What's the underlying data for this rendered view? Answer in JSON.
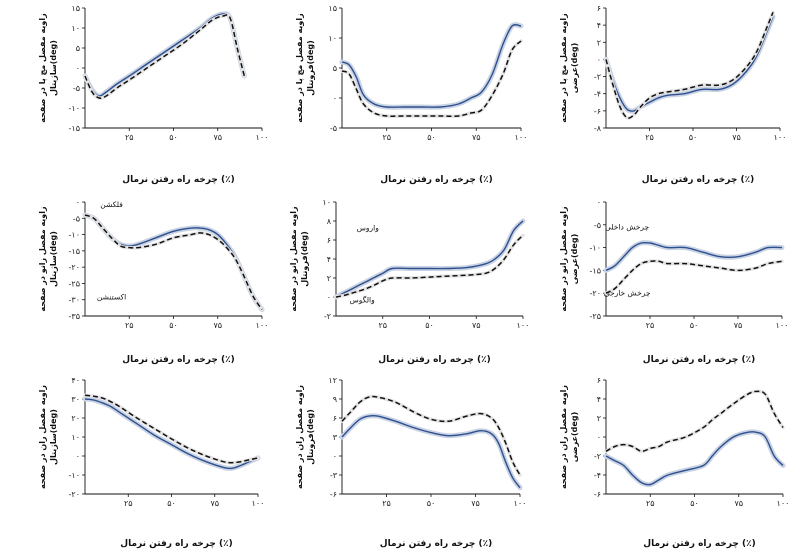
{
  "colors": {
    "solid": "#2e4f8f",
    "band": "#c9d3e3",
    "dashed": "#111111"
  },
  "chart_data": [
    {
      "type": "line",
      "xlabel": "چرخه راه رفتن نرمال (٪)",
      "ylabel": [
        "زاویه مفصل مچ پا در صفحه",
        "ساژیتال(deg)"
      ],
      "xlim": [
        0,
        100
      ],
      "ylim": [
        -15,
        15
      ],
      "xticks": [
        25,
        50,
        75,
        100
      ],
      "xtick_labels": [
        "۲۵",
        "۵۰",
        "۷۵",
        "۱۰۰"
      ],
      "yticks": [
        -15,
        -10,
        -5,
        0,
        5,
        10,
        15
      ],
      "ytick_labels": [
        "-۱۵",
        "-۱۰",
        "-۵",
        "۰",
        "۵",
        "۱۰",
        "۱۵"
      ],
      "annotations": [],
      "series": [
        {
          "style": "solid",
          "x": [
            0,
            4,
            8,
            12,
            18,
            25,
            35,
            45,
            55,
            65,
            72,
            78,
            82,
            86,
            90
          ],
          "y": [
            -2,
            -5.5,
            -7,
            -6,
            -4,
            -2,
            1,
            4,
            7,
            10,
            12.5,
            13.5,
            12.5,
            5,
            -2
          ]
        },
        {
          "style": "dashed",
          "x": [
            0,
            4,
            8,
            12,
            18,
            25,
            35,
            45,
            55,
            65,
            72,
            78,
            82,
            86,
            90
          ],
          "y": [
            -2,
            -6,
            -7.5,
            -7,
            -5,
            -3,
            0,
            3,
            6,
            9.5,
            12,
            13,
            12.5,
            5,
            -2
          ]
        }
      ]
    },
    {
      "type": "line",
      "xlabel": "چرخه راه رفتن نرمال (٪)",
      "ylabel": [
        "زاویه مفصل مچ پا در صفحه",
        "فرونتال(deg)"
      ],
      "xlim": [
        0,
        100
      ],
      "ylim": [
        -5,
        15
      ],
      "xticks": [
        25,
        50,
        75,
        100
      ],
      "xtick_labels": [
        "۲۵",
        "۵۰",
        "۷۵",
        "۱۰۰"
      ],
      "yticks": [
        -5,
        0,
        5,
        10,
        15
      ],
      "ytick_labels": [
        "-۵",
        "۰",
        "۵",
        "۱۰",
        "۱۵"
      ],
      "annotations": [],
      "series": [
        {
          "style": "solid",
          "x": [
            0,
            4,
            8,
            12,
            18,
            25,
            35,
            45,
            55,
            65,
            72,
            78,
            84,
            90,
            95,
            100
          ],
          "y": [
            6,
            5.5,
            3.5,
            0.5,
            -1,
            -1.5,
            -1.5,
            -1.5,
            -1.5,
            -1,
            0,
            1,
            4,
            9,
            12,
            12
          ]
        },
        {
          "style": "dashed",
          "x": [
            0,
            4,
            8,
            12,
            18,
            25,
            35,
            45,
            55,
            65,
            72,
            78,
            84,
            90,
            95,
            100
          ],
          "y": [
            4.5,
            4,
            1.5,
            -1,
            -2.5,
            -3,
            -3,
            -3,
            -3,
            -3,
            -2.5,
            -2,
            0.5,
            4,
            8,
            9.5
          ]
        }
      ]
    },
    {
      "type": "line",
      "xlabel": "چرخه راه رفتن نرمال (٪)",
      "ylabel": [
        "زاویه مفصل مچ پا در صفحه",
        "عرضی(deg)"
      ],
      "xlim": [
        0,
        100
      ],
      "ylim": [
        -8,
        6
      ],
      "xticks": [
        25,
        50,
        75,
        100
      ],
      "xtick_labels": [
        "۲۵",
        "۵۰",
        "۷۵",
        "۱۰۰"
      ],
      "yticks": [
        -8,
        -6,
        -4,
        -2,
        0,
        2,
        4,
        6
      ],
      "ytick_labels": [
        "-۸",
        "-۶",
        "-۴",
        "-۲",
        "۰",
        "۲",
        "۴",
        "۶"
      ],
      "annotations": [],
      "series": [
        {
          "style": "solid",
          "x": [
            0,
            4,
            8,
            12,
            16,
            20,
            25,
            30,
            35,
            45,
            55,
            65,
            72,
            78,
            84,
            88,
            92,
            96
          ],
          "y": [
            0,
            -2.5,
            -4.5,
            -5.8,
            -6,
            -5.5,
            -5,
            -4.5,
            -4.2,
            -4,
            -3.5,
            -3.5,
            -3,
            -2,
            -0.5,
            1,
            3,
            5
          ]
        },
        {
          "style": "dashed",
          "x": [
            0,
            4,
            8,
            12,
            16,
            20,
            25,
            30,
            35,
            45,
            55,
            65,
            72,
            78,
            84,
            88,
            92,
            96
          ],
          "y": [
            0,
            -3,
            -5.5,
            -6.8,
            -6.5,
            -5.5,
            -4.5,
            -4,
            -3.8,
            -3.5,
            -3,
            -3,
            -2.5,
            -1.5,
            0,
            1.5,
            3.5,
            5.5
          ]
        }
      ]
    },
    {
      "type": "line",
      "xlabel": "چرخه راه رفتن نرمال (٪)",
      "ylabel": [
        "زاویه مفصل زانو در صفحه",
        "ساژیتال(deg)"
      ],
      "xlim": [
        0,
        100
      ],
      "ylim": [
        -35,
        0
      ],
      "xticks": [
        25,
        50,
        75,
        100
      ],
      "xtick_labels": [
        "۲۵",
        "۵۰",
        "۷۵",
        "۱۰۰"
      ],
      "yticks": [
        -35,
        -30,
        -25,
        -20,
        -15,
        -10,
        -5,
        0
      ],
      "ytick_labels": [
        "-۳۵",
        "-۳۰",
        "-۲۵",
        "-۲۰",
        "-۱۵",
        "-۱۰",
        "-۵",
        "۰"
      ],
      "annotations": [
        {
          "text": "فلکشن",
          "x": 15,
          "y": -1.5
        },
        {
          "text": "اکستنشن",
          "x": 15,
          "y": -30
        }
      ],
      "series": [
        {
          "style": "solid",
          "x": [
            0,
            5,
            10,
            15,
            20,
            25,
            30,
            40,
            50,
            60,
            65,
            70,
            75,
            80,
            85,
            90,
            95,
            100
          ],
          "y": [
            -4,
            -5,
            -8,
            -11,
            -13,
            -13.5,
            -13,
            -11,
            -9,
            -8,
            -8,
            -8.5,
            -10,
            -13,
            -17,
            -23,
            -29,
            -33
          ]
        },
        {
          "style": "dashed",
          "x": [
            0,
            5,
            10,
            15,
            20,
            25,
            30,
            40,
            50,
            60,
            65,
            70,
            75,
            80,
            85,
            90,
            95,
            100
          ],
          "y": [
            -4,
            -5,
            -8,
            -11,
            -13.5,
            -14,
            -14,
            -13,
            -11,
            -10,
            -9.5,
            -10,
            -11.5,
            -14,
            -17.5,
            -23,
            -29,
            -33
          ]
        }
      ]
    },
    {
      "type": "line",
      "xlabel": "چرخه راه رفتن نرمال (٪)",
      "ylabel": [
        "زاویه مفصل زانو در صفحه",
        "فرونتال(deg)"
      ],
      "xlim": [
        0,
        100
      ],
      "ylim": [
        -2,
        10
      ],
      "xticks": [
        25,
        50,
        75,
        100
      ],
      "xtick_labels": [
        "۲۵",
        "۵۰",
        "۷۵",
        "۱۰۰"
      ],
      "yticks": [
        -2,
        0,
        2,
        4,
        6,
        8,
        10
      ],
      "ytick_labels": [
        "-۲",
        "۰",
        "۲",
        "۴",
        "۶",
        "۸",
        "۱۰"
      ],
      "annotations": [
        {
          "text": "واروس",
          "x": 17,
          "y": 7
        },
        {
          "text": "والگوس",
          "x": 14,
          "y": -0.6
        }
      ],
      "series": [
        {
          "style": "solid",
          "x": [
            0,
            5,
            10,
            15,
            20,
            25,
            30,
            40,
            50,
            60,
            70,
            80,
            85,
            90,
            95,
            100
          ],
          "y": [
            0,
            0.5,
            1,
            1.5,
            2,
            2.5,
            3,
            3,
            3,
            3,
            3.1,
            3.5,
            4,
            5,
            7,
            8
          ]
        },
        {
          "style": "dashed",
          "x": [
            0,
            5,
            10,
            15,
            20,
            25,
            30,
            40,
            50,
            60,
            70,
            80,
            85,
            90,
            95,
            100
          ],
          "y": [
            0,
            0.2,
            0.5,
            0.8,
            1.2,
            1.7,
            2,
            2,
            2.1,
            2.2,
            2.3,
            2.5,
            3,
            4,
            5.5,
            6.5
          ]
        }
      ]
    },
    {
      "type": "line",
      "xlabel": "چرخه راه رفتن نرمال (٪)",
      "ylabel": [
        "زاویه مفصل زانو در صفحه",
        "عرضی(deg)"
      ],
      "xlim": [
        0,
        100
      ],
      "ylim": [
        -25,
        0
      ],
      "xticks": [
        25,
        50,
        75,
        100
      ],
      "xtick_labels": [
        "۲۵",
        "۵۰",
        "۷۵",
        "۱۰۰"
      ],
      "yticks": [
        -25,
        -20,
        -15,
        -10,
        -5,
        0
      ],
      "ytick_labels": [
        "-۲۵",
        "-۲۰",
        "-۱۵",
        "-۱۰",
        "-۵",
        "۰"
      ],
      "annotations": [
        {
          "text": "چرخش داخلی",
          "x": 12,
          "y": -6
        },
        {
          "text": "چرخش خارجی",
          "x": 12,
          "y": -20.5
        }
      ],
      "series": [
        {
          "style": "solid",
          "x": [
            0,
            5,
            10,
            15,
            20,
            25,
            30,
            35,
            45,
            55,
            65,
            75,
            85,
            92,
            100
          ],
          "y": [
            -15,
            -14,
            -12,
            -10,
            -9,
            -9,
            -9.5,
            -10,
            -10,
            -11,
            -12,
            -12,
            -11,
            -10,
            -10
          ]
        },
        {
          "style": "dashed",
          "x": [
            0,
            5,
            10,
            15,
            20,
            25,
            30,
            35,
            45,
            55,
            65,
            75,
            85,
            92,
            100
          ],
          "y": [
            -20,
            -19,
            -17,
            -15,
            -13.5,
            -13,
            -13,
            -13.5,
            -13.5,
            -14,
            -14.5,
            -15,
            -14.5,
            -13.5,
            -13
          ]
        }
      ]
    },
    {
      "type": "line",
      "xlabel": "چرخه راه رفتن نرمال (٪)",
      "ylabel": [
        "زاویه مفصل ران در صفحه",
        "ساژیتال(deg)"
      ],
      "xlim": [
        0,
        100
      ],
      "ylim": [
        -20,
        40
      ],
      "xticks": [
        25,
        50,
        75,
        100
      ],
      "xtick_labels": [
        "۲۵",
        "۵۰",
        "۷۵",
        "۱۰۰"
      ],
      "yticks": [
        -20,
        -10,
        0,
        10,
        20,
        30,
        40
      ],
      "ytick_labels": [
        "-۲۰",
        "-۱۰",
        "۰",
        "۱۰",
        "۲۰",
        "۳۰",
        "۴۰"
      ],
      "annotations": [],
      "series": [
        {
          "style": "solid",
          "x": [
            0,
            5,
            10,
            15,
            20,
            30,
            40,
            50,
            60,
            70,
            80,
            85,
            90,
            95,
            100
          ],
          "y": [
            30,
            29.5,
            28,
            26,
            23,
            17,
            11,
            6,
            1,
            -3,
            -6,
            -6.5,
            -5,
            -3,
            -1
          ]
        },
        {
          "style": "dashed",
          "x": [
            0,
            5,
            10,
            15,
            20,
            30,
            40,
            50,
            60,
            70,
            80,
            85,
            90,
            95,
            100
          ],
          "y": [
            32,
            31.5,
            30.5,
            28.5,
            26,
            20,
            14.5,
            9,
            4,
            0,
            -3,
            -3.5,
            -3,
            -2,
            -1
          ]
        }
      ]
    },
    {
      "type": "line",
      "xlabel": "چرخه راه رفتن نرمال (٪)",
      "ylabel": [
        "زاویه مفصل ران در صفحه",
        "فرونتال(deg)"
      ],
      "xlim": [
        0,
        100
      ],
      "ylim": [
        -6,
        12
      ],
      "xticks": [
        25,
        50,
        75,
        100
      ],
      "xtick_labels": [
        "۲۵",
        "۵۰",
        "۷۵",
        "۱۰۰"
      ],
      "yticks": [
        -6,
        -3,
        0,
        3,
        6,
        9,
        12
      ],
      "ytick_labels": [
        "-۶",
        "-۳",
        "۰",
        "۳",
        "۶",
        "۹",
        "۱۲"
      ],
      "annotations": [],
      "series": [
        {
          "style": "solid",
          "x": [
            0,
            5,
            10,
            15,
            20,
            30,
            40,
            50,
            60,
            70,
            78,
            84,
            88,
            92,
            96,
            100
          ],
          "y": [
            3,
            4.5,
            5.8,
            6.3,
            6.3,
            5.5,
            4.5,
            3.7,
            3.2,
            3.5,
            4,
            3.5,
            2,
            -1,
            -3.5,
            -5
          ]
        },
        {
          "style": "dashed",
          "x": [
            0,
            5,
            10,
            15,
            20,
            30,
            40,
            50,
            60,
            70,
            78,
            84,
            88,
            92,
            96,
            100
          ],
          "y": [
            5.5,
            7,
            8.5,
            9.3,
            9.3,
            8.5,
            7,
            5.8,
            5.5,
            6.3,
            6.7,
            6,
            4.5,
            2,
            -1,
            -3
          ]
        }
      ]
    },
    {
      "type": "line",
      "xlabel": "چرخه راه رفتن نرمال (٪)",
      "ylabel": [
        "زاویه مفصل ران در صفحه",
        "عرضی(deg)"
      ],
      "xlim": [
        0,
        100
      ],
      "ylim": [
        -6,
        6
      ],
      "xticks": [
        25,
        50,
        75,
        100
      ],
      "xtick_labels": [
        "۲۵",
        "۵۰",
        "۷۵",
        "۱۰۰"
      ],
      "yticks": [
        -6,
        -4,
        -2,
        0,
        2,
        4,
        6
      ],
      "ytick_labels": [
        "-۶",
        "-۴",
        "-۲",
        "۰",
        "۲",
        "۴",
        "۶"
      ],
      "annotations": [],
      "series": [
        {
          "style": "solid",
          "x": [
            0,
            5,
            10,
            15,
            20,
            25,
            30,
            35,
            45,
            55,
            60,
            65,
            72,
            80,
            85,
            90,
            95,
            100
          ],
          "y": [
            -2,
            -2.5,
            -3,
            -4,
            -4.8,
            -5,
            -4.5,
            -4,
            -3.5,
            -3,
            -2,
            -1,
            0,
            0.5,
            0.5,
            0,
            -2,
            -3
          ]
        },
        {
          "style": "dashed",
          "x": [
            0,
            5,
            10,
            15,
            20,
            25,
            30,
            35,
            45,
            55,
            60,
            65,
            72,
            80,
            85,
            90,
            95,
            100
          ],
          "y": [
            -1.5,
            -1,
            -0.8,
            -1,
            -1.5,
            -1.2,
            -1,
            -0.5,
            0,
            1,
            1.8,
            2.5,
            3.5,
            4.5,
            4.8,
            4.5,
            2.5,
            1
          ]
        }
      ]
    }
  ]
}
